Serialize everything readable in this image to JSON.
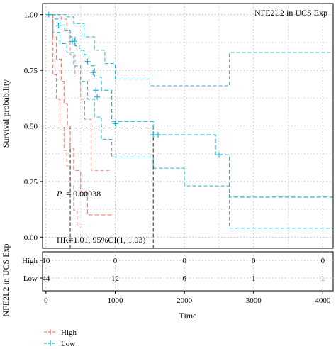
{
  "chart_data": {
    "type": "line",
    "subtype": "kaplan-meier",
    "title": "NFE2L2 in UCS Exp",
    "xlabel": "Time",
    "ylabel": "Survival probability",
    "xlim": [
      -50,
      4150
    ],
    "ylim": [
      -0.05,
      1.05
    ],
    "x_ticks": [
      0,
      1000,
      2000,
      3000,
      4000
    ],
    "y_ticks": [
      0.0,
      0.25,
      0.5,
      0.75,
      1.0
    ],
    "y_tick_labels": [
      "0.00",
      "0.25",
      "0.50",
      "0.75",
      "1.00"
    ],
    "x_tick_labels": [
      "0",
      "1000",
      "2000",
      "3000",
      "4000"
    ],
    "grid": true,
    "pvalue_text": "P = 0.00038",
    "p_label": "P",
    "p_value": "= 0.00038",
    "hr_text": "HR=1.01, 95%CI(1, 1.03)",
    "median_survival": {
      "High": 350,
      "Low": 1550
    },
    "series": [
      {
        "name": "High",
        "color": "#f08070",
        "linestyle": "dashed",
        "x": [
          0,
          100,
          150,
          220,
          260,
          310,
          350,
          400,
          500,
          600,
          950
        ],
        "y": [
          1.0,
          0.9,
          0.8,
          0.7,
          0.6,
          0.5,
          0.4,
          0.3,
          0.2,
          0.1,
          0.1
        ],
        "censored_x": [],
        "ci_upper_x": [
          0,
          150,
          220,
          300,
          350,
          420,
          500,
          560,
          650,
          950
        ],
        "ci_upper_y": [
          1.0,
          1.0,
          0.98,
          0.93,
          0.82,
          0.72,
          0.62,
          0.53,
          0.3,
          0.3
        ],
        "ci_lower_x": [
          0,
          100,
          150,
          200,
          260,
          300,
          350,
          400,
          450,
          520
        ],
        "ci_lower_y": [
          1.0,
          0.73,
          0.62,
          0.5,
          0.39,
          0.32,
          0.23,
          0.12,
          0.05,
          0.0
        ]
      },
      {
        "name": "Low",
        "color": "#22b5d3",
        "linestyle": "dashed",
        "x": [
          0,
          130,
          200,
          270,
          350,
          420,
          480,
          550,
          620,
          700,
          800,
          950,
          1550,
          2000,
          2450,
          2650,
          4150
        ],
        "y": [
          1.0,
          0.98,
          0.95,
          0.93,
          0.9,
          0.86,
          0.84,
          0.82,
          0.77,
          0.72,
          0.66,
          0.52,
          0.46,
          0.46,
          0.37,
          0.18,
          0.18
        ],
        "censored_x": [
          40,
          180,
          380,
          410,
          600,
          680,
          720,
          740,
          1000,
          1550,
          1620,
          2500
        ],
        "censored_y": [
          1.0,
          0.95,
          0.88,
          0.88,
          0.79,
          0.74,
          0.66,
          0.63,
          0.51,
          0.46,
          0.46,
          0.37
        ],
        "ci_upper_x": [
          0,
          300,
          400,
          550,
          700,
          850,
          1000,
          1500,
          2650,
          4150
        ],
        "ci_upper_y": [
          1.0,
          0.99,
          0.96,
          0.9,
          0.84,
          0.78,
          0.71,
          0.68,
          0.83,
          0.83
        ],
        "ci_lower_x": [
          0,
          100,
          200,
          300,
          400,
          500,
          600,
          700,
          800,
          950,
          1550,
          2000,
          2650,
          4150
        ],
        "ci_lower_y": [
          1.0,
          0.92,
          0.87,
          0.83,
          0.77,
          0.7,
          0.62,
          0.54,
          0.44,
          0.36,
          0.31,
          0.23,
          0.04,
          0.04
        ]
      }
    ],
    "risk_table": {
      "title": "NFE2L2 in UCS Exp",
      "rows": [
        {
          "name": "High",
          "counts": [
            "10",
            "0",
            "0",
            "0",
            "0"
          ]
        },
        {
          "name": "Low",
          "counts": [
            "44",
            "12",
            "6",
            "1",
            "1"
          ]
        }
      ]
    },
    "legend": {
      "placement": "bottom-left",
      "entries": [
        {
          "label": "High",
          "color": "#f08070"
        },
        {
          "label": "Low",
          "color": "#22b5d3"
        }
      ]
    }
  }
}
